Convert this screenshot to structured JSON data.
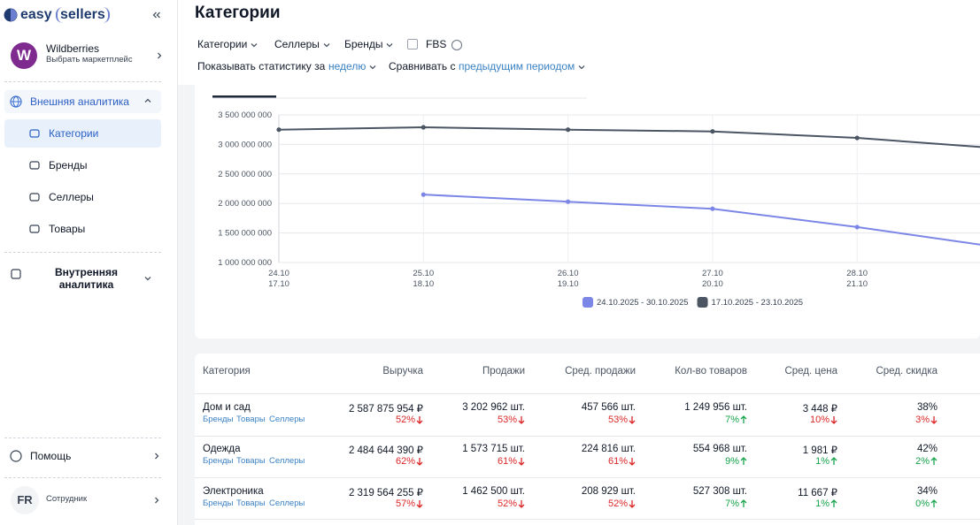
{
  "sidebar": {
    "logo": [
      "easy",
      "sellers"
    ],
    "marketplace": {
      "avatar": "W",
      "name": "Wildberries",
      "subtitle": "Выбрать маркетплейс"
    },
    "nav": [
      {
        "label": "Внешняя аналитика",
        "children": [
          "Категории",
          "Бренды",
          "Селлеры",
          "Товары"
        ]
      },
      {
        "label": "Внутренняя аналитика"
      }
    ],
    "help": "Помощь",
    "user": {
      "initials": "FR",
      "role": "Сотрудник"
    }
  },
  "header": {
    "title": "Категории",
    "filters": [
      "Категории",
      "Селлеры",
      "Бренды"
    ],
    "fbs": "FBS",
    "period_label": "Показывать статистику за",
    "period": "неделю",
    "compare_label": "Сравнивать с",
    "compare": "предыдущим периодом"
  },
  "chart_data": {
    "type": "line",
    "categories": [
      "24.10",
      "25.10",
      "26.10",
      "27.10",
      "28.10",
      null
    ],
    "categories_compare": [
      "17.10",
      "18.10",
      "19.10",
      "20.10",
      "21.10",
      null
    ],
    "series": [
      {
        "name": "24.10.2025 - 30.10.2025",
        "color": "#7b86e6",
        "values": [
          null,
          2150000000,
          2030000000,
          1910000000,
          1600000000,
          1250000000
        ]
      },
      {
        "name": "17.10.2025 - 23.10.2025",
        "color": "#4b5563",
        "values": [
          3250000000,
          3290000000,
          3250000000,
          3220000000,
          3110000000,
          2930000000
        ]
      }
    ],
    "ylim": [
      1000000000,
      3500000000
    ],
    "yticks": [
      {
        "value": 1000000000,
        "label": "1 000 000 000"
      },
      {
        "value": 1500000000,
        "label": "1 500 000 000"
      },
      {
        "value": 2000000000,
        "label": "2 000 000 000"
      },
      {
        "value": 2500000000,
        "label": "2 500 000 000"
      },
      {
        "value": 3000000000,
        "label": "3 000 000 000"
      },
      {
        "value": 3500000000,
        "label": "3 500 000 000"
      }
    ],
    "grid": true
  },
  "table": {
    "columns": [
      "Категория",
      "Выручка",
      "Продажи",
      "Сред. продажи",
      "Кол-во товаров",
      "Сред. цена",
      "Сред. скидка"
    ],
    "row_links": [
      "Бренды",
      "Товары",
      "Селлеры"
    ],
    "rows": [
      {
        "name": "Дом и сад",
        "cells": [
          {
            "value": "2 587 875 954 ₽",
            "change": "52%",
            "trend": "down"
          },
          {
            "value": "3 202 962 шт.",
            "change": "53%",
            "trend": "down"
          },
          {
            "value": "457 566 шт.",
            "change": "53%",
            "trend": "down"
          },
          {
            "value": "1 249 956 шт.",
            "change": "7%",
            "trend": "up"
          },
          {
            "value": "3 448 ₽",
            "change": "10%",
            "trend": "down"
          },
          {
            "value": "38%",
            "change": "3%",
            "trend": "down"
          }
        ]
      },
      {
        "name": "Одежда",
        "cells": [
          {
            "value": "2 484 644 390 ₽",
            "change": "62%",
            "trend": "down"
          },
          {
            "value": "1 573 715 шт.",
            "change": "61%",
            "trend": "down"
          },
          {
            "value": "224 816 шт.",
            "change": "61%",
            "trend": "down"
          },
          {
            "value": "554 968 шт.",
            "change": "9%",
            "trend": "up"
          },
          {
            "value": "1 981 ₽",
            "change": "1%",
            "trend": "up"
          },
          {
            "value": "42%",
            "change": "2%",
            "trend": "up"
          }
        ]
      },
      {
        "name": "Электроника",
        "cells": [
          {
            "value": "2 319 564 255 ₽",
            "change": "57%",
            "trend": "down"
          },
          {
            "value": "1 462 500 шт.",
            "change": "52%",
            "trend": "down"
          },
          {
            "value": "208 929 шт.",
            "change": "52%",
            "trend": "down"
          },
          {
            "value": "527 308 шт.",
            "change": "7%",
            "trend": "up"
          },
          {
            "value": "11 667 ₽",
            "change": "1%",
            "trend": "up"
          },
          {
            "value": "34%",
            "change": "0%",
            "trend": "up"
          }
        ]
      }
    ]
  }
}
